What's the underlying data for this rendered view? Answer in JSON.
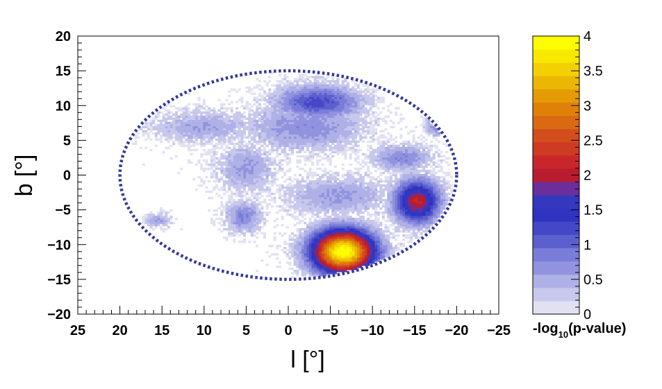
{
  "chart_data": {
    "type": "heatmap",
    "title": "",
    "xlabel": "l [°]",
    "ylabel": "b [°]",
    "xlim": [
      25,
      -25
    ],
    "ylim": [
      -20,
      20
    ],
    "x_ticks": [
      "25",
      "20",
      "15",
      "10",
      "5",
      "0",
      "−5",
      "−10",
      "−15",
      "−20",
      "−25"
    ],
    "x_tick_values": [
      25,
      20,
      15,
      10,
      5,
      0,
      -5,
      -10,
      -15,
      -20,
      -25
    ],
    "y_ticks": [
      "20",
      "15",
      "10",
      "5",
      "0",
      "−5",
      "−10",
      "−15",
      "−20"
    ],
    "y_tick_values": [
      20,
      15,
      10,
      5,
      0,
      -5,
      -10,
      -15,
      -20
    ],
    "region_of_interest": {
      "shape": "ellipse",
      "center_l": 0,
      "center_b": 0,
      "radius_l": 20,
      "radius_b": 15,
      "style": "dashed",
      "color": "#34389a"
    },
    "colorbar": {
      "label_prefix": "-log",
      "label_sub": "10",
      "label_suffix": "(p-value)",
      "range": [
        0,
        4
      ],
      "ticks": [
        "0",
        "0.5",
        "1",
        "1.5",
        "2",
        "2.5",
        "3",
        "3.5",
        "4"
      ],
      "tick_values": [
        0,
        0.5,
        1,
        1.5,
        2,
        2.5,
        3,
        3.5,
        4
      ],
      "colors": [
        "#e1e1f2",
        "#c7c8ec",
        "#afb0e6",
        "#9193df",
        "#7a7dd8",
        "#5c60cf",
        "#4548c6",
        "#3033c0",
        "#3438bf",
        "#6b2e9a",
        "#b81c2e",
        "#c8262a",
        "#ce3a22",
        "#d34e1c",
        "#d96a12",
        "#df8108",
        "#e49b05",
        "#ecb704",
        "#f3d002",
        "#f8e800",
        "#fffe00"
      ]
    },
    "hotspots": [
      {
        "l": -6.5,
        "b": -11,
        "peak": 4.0,
        "sigma_l": 2.6,
        "sigma_b": 2.2
      },
      {
        "l": -15.3,
        "b": -3.8,
        "peak": 2.1,
        "sigma_l": 1.9,
        "sigma_b": 2.2
      },
      {
        "l": -3.5,
        "b": 10.5,
        "peak": 1.25,
        "sigma_l": 3.5,
        "sigma_b": 1.7
      },
      {
        "l": 5.3,
        "b": -6,
        "peak": 0.78,
        "sigma_l": 1.5,
        "sigma_b": 1.6
      },
      {
        "l": 15.5,
        "b": -6.5,
        "peak": 0.6,
        "sigma_l": 1.1,
        "sigma_b": 0.7
      },
      {
        "l": -13.5,
        "b": 2.5,
        "peak": 0.75,
        "sigma_l": 2.5,
        "sigma_b": 1.4
      },
      {
        "l": -18,
        "b": 7,
        "peak": 0.9,
        "sigma_l": 1.1,
        "sigma_b": 1.0
      },
      {
        "l": 10,
        "b": 7,
        "peak": 0.55,
        "sigma_l": 4.5,
        "sigma_b": 1.6
      },
      {
        "l": 5,
        "b": 1,
        "peak": 0.6,
        "sigma_l": 2.5,
        "sigma_b": 2.5
      },
      {
        "l": -6,
        "b": -3,
        "peak": 0.6,
        "sigma_l": 4.5,
        "sigma_b": 2.0
      },
      {
        "l": -2,
        "b": 7,
        "peak": 0.7,
        "sigma_l": 5.0,
        "sigma_b": 2.5
      }
    ]
  }
}
